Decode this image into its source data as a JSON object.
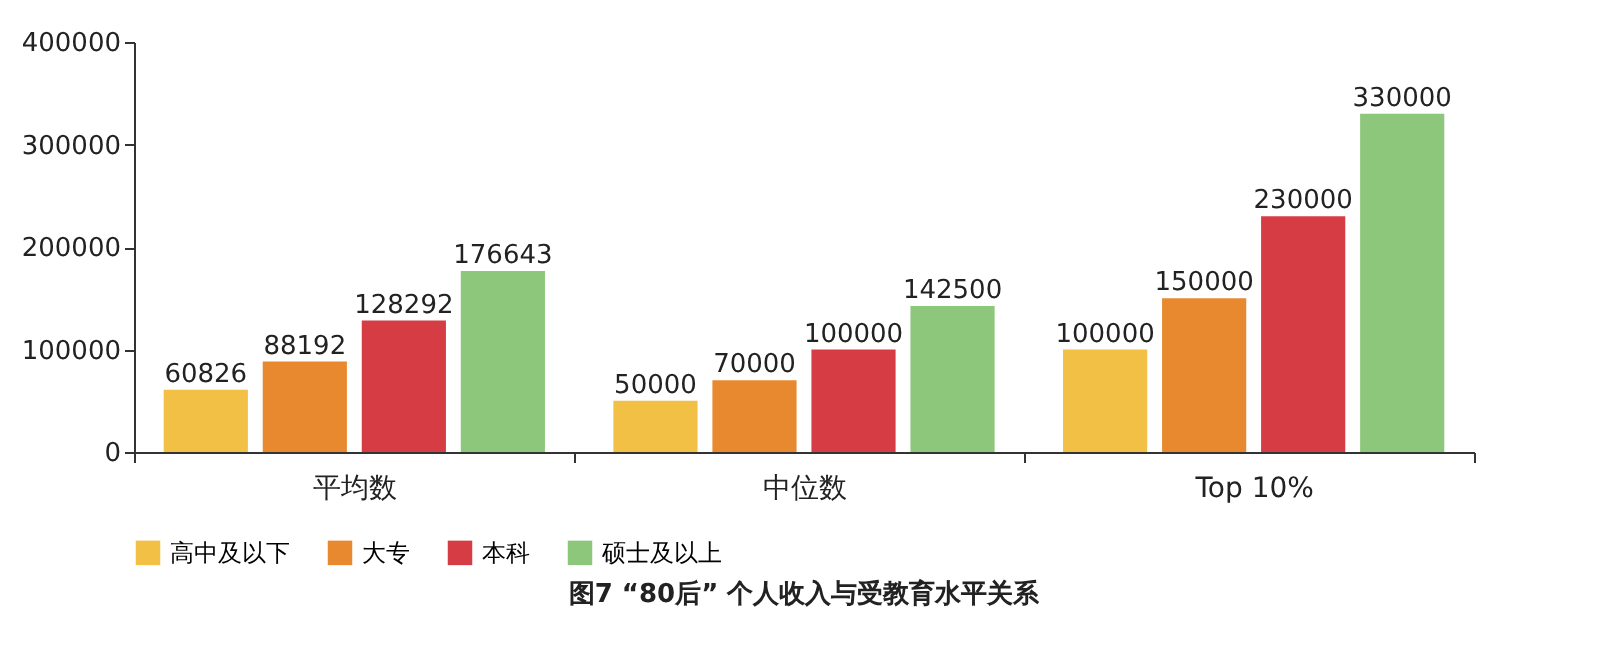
{
  "chart_data": {
    "type": "bar",
    "title": "图7  “80后” 个人收入与受教育水平关系",
    "categories": [
      "平均数",
      "中位数",
      "Top 10%"
    ],
    "series": [
      {
        "name": "高中及以下",
        "color": "#f2c045",
        "values": [
          60826,
          50000,
          100000
        ]
      },
      {
        "name": "大专",
        "color": "#e9892f",
        "values": [
          88192,
          70000,
          150000
        ]
      },
      {
        "name": "本科",
        "color": "#d63c43",
        "values": [
          128292,
          100000,
          230000
        ]
      },
      {
        "name": "硕士及以上",
        "color": "#8dc77b",
        "values": [
          176643,
          142500,
          330000
        ]
      }
    ],
    "ylim": [
      0,
      400000
    ],
    "yticks": [
      0,
      100000,
      200000,
      300000,
      400000
    ],
    "data_labels": true,
    "legend": "bottom",
    "grid": false
  }
}
